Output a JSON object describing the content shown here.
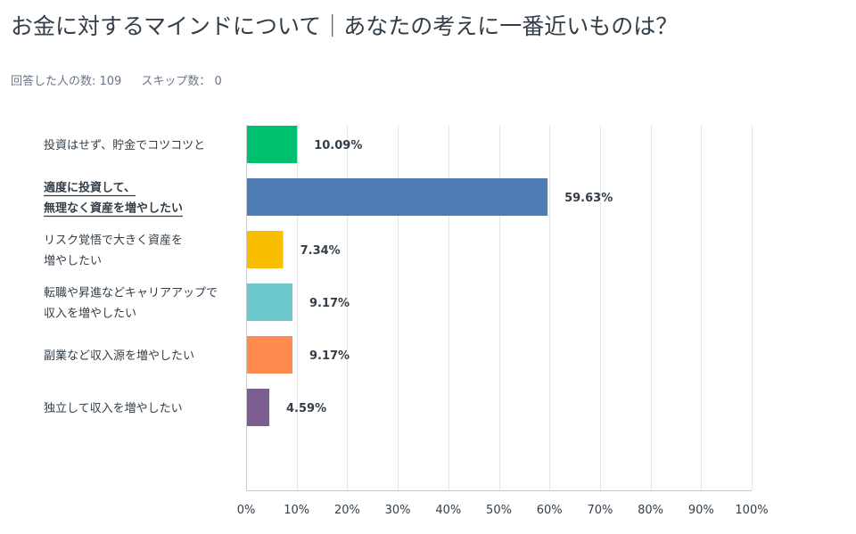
{
  "title": "お金に対するマインドについて｜あなたの考えに一番近いものは？",
  "meta": {
    "respondents_label": "回答した人の数: 109",
    "skipped_label": "スキップ数： 0"
  },
  "chart_data": {
    "type": "bar",
    "orientation": "horizontal",
    "categories": [
      [
        "投資はせず、貯金でコツコツと"
      ],
      [
        "適度に投資して、",
        "無理なく資産を増やしたい"
      ],
      [
        "リスク覚悟で大きく資産を",
        "増やしたい"
      ],
      [
        "転職や昇進などキャリアアップで",
        "収入を増やしたい"
      ],
      [
        "副業など収入源を増やしたい"
      ],
      [
        "独立して収入を増やしたい"
      ]
    ],
    "values": [
      10.09,
      59.63,
      7.34,
      9.17,
      9.17,
      4.59
    ],
    "value_labels": [
      "10.09%",
      "59.63%",
      "7.34%",
      "9.17%",
      "9.17%",
      "4.59%"
    ],
    "highlighted_index": 1,
    "colors": [
      "#00bf6f",
      "#507cb6",
      "#f9be00",
      "#6bc8cd",
      "#ff8b4f",
      "#7d5e90"
    ],
    "xlim": [
      0,
      100
    ],
    "xticks": [
      "0%",
      "10%",
      "20%",
      "30%",
      "40%",
      "50%",
      "60%",
      "70%",
      "80%",
      "90%",
      "100%"
    ],
    "grid": true,
    "gridline_color": "#e6e6e6",
    "axis_color": "#c9c9c9"
  }
}
